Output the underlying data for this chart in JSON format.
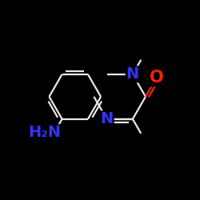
{
  "bg": "#000000",
  "bond_color": "#e8e8e8",
  "N_color": "#3333ff",
  "O_color": "#ff2200",
  "NH2_color": "#3333ff",
  "figsize": [
    2.5,
    2.5
  ],
  "dpi": 100,
  "xlim": [
    -1,
    11
  ],
  "ylim": [
    -1,
    11
  ],
  "bond_lw": 1.6,
  "font_size": 14
}
